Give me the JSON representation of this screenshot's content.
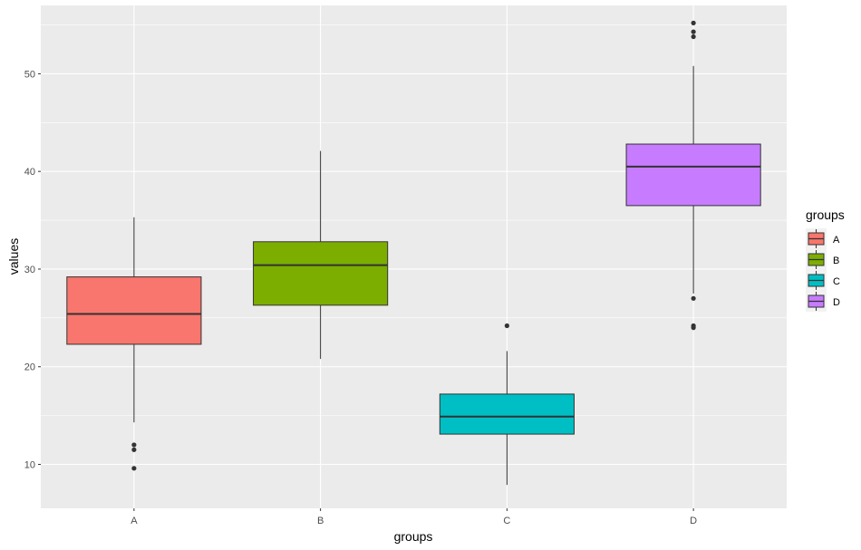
{
  "chart_data": {
    "type": "boxplot",
    "xlabel": "groups",
    "ylabel": "values",
    "categories": [
      "A",
      "B",
      "C",
      "D"
    ],
    "y_ticks": [
      10,
      20,
      30,
      40,
      50
    ],
    "ylim": [
      5.5,
      57
    ],
    "grid": true,
    "legend": {
      "title": "groups",
      "position": "right",
      "entries": [
        "A",
        "B",
        "C",
        "D"
      ]
    },
    "colors": {
      "A": "#F8766D",
      "B": "#7CAE00",
      "C": "#00BFC4",
      "D": "#C77CFF",
      "panel": "#EBEBEB",
      "grid": "#FFFFFF"
    },
    "series": [
      {
        "group": "A",
        "whisker_low": 14.3,
        "q1": 22.3,
        "median": 25.4,
        "q3": 29.2,
        "whisker_high": 35.3,
        "outliers": [
          12.0,
          11.5,
          9.6
        ]
      },
      {
        "group": "B",
        "whisker_low": 20.8,
        "q1": 26.3,
        "median": 30.4,
        "q3": 32.8,
        "whisker_high": 42.1,
        "outliers": []
      },
      {
        "group": "C",
        "whisker_low": 7.9,
        "q1": 13.1,
        "median": 14.9,
        "q3": 17.2,
        "whisker_high": 21.6,
        "outliers": [
          24.2
        ]
      },
      {
        "group": "D",
        "whisker_low": 27.5,
        "q1": 36.5,
        "median": 40.5,
        "q3": 42.8,
        "whisker_high": 50.8,
        "outliers": [
          55.2,
          54.3,
          53.8,
          27.0,
          24.2,
          24.0
        ]
      }
    ]
  }
}
